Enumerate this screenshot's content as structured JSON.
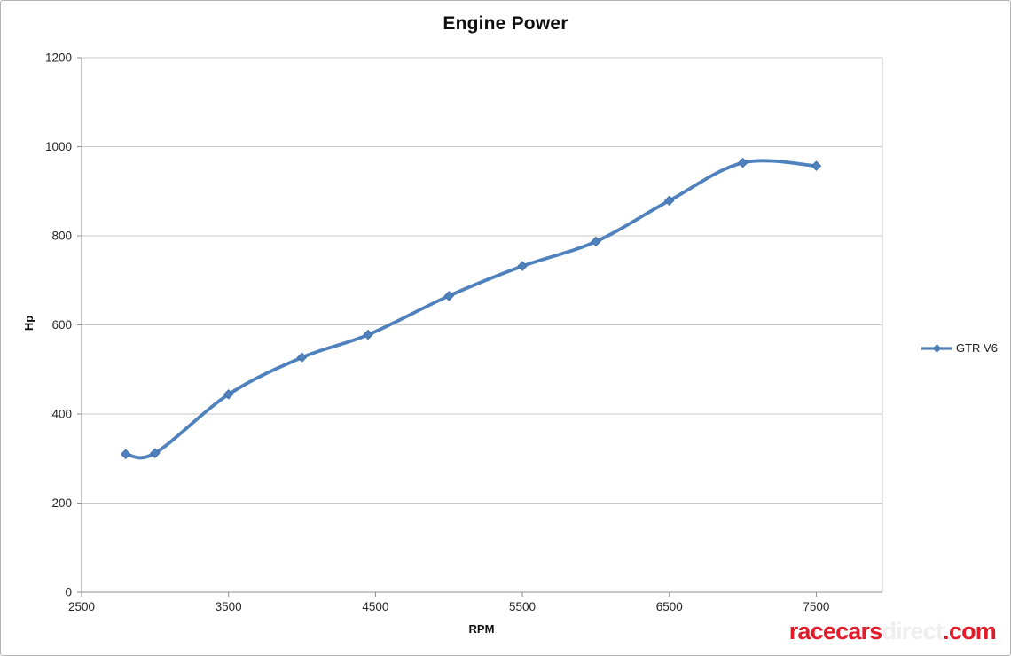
{
  "chart_data": {
    "type": "line",
    "title": "Engine Power",
    "xlabel": "RPM",
    "ylabel": "Hp",
    "xlim": [
      2500,
      7950
    ],
    "ylim": [
      0,
      1200
    ],
    "xticks": [
      2500,
      3500,
      4500,
      5500,
      6500,
      7500
    ],
    "yticks": [
      0,
      200,
      400,
      600,
      800,
      1000,
      1200
    ],
    "grid": "horizontal-only",
    "legend_position": "right",
    "line_style": "smooth",
    "marker": "diamond",
    "series": [
      {
        "name": "GTR V6",
        "color": "#4f81bd",
        "x": [
          2800,
          3000,
          3500,
          4000,
          4450,
          5000,
          5500,
          6000,
          6500,
          7000,
          7500
        ],
        "y": [
          310,
          312,
          444,
          527,
          578,
          665,
          732,
          787,
          879,
          964,
          957
        ]
      }
    ]
  },
  "watermark": {
    "text_red_1": "racecars",
    "text_faint": "direct",
    "text_red_2": ".com",
    "red_color": "#e11b2a",
    "faint_color": "#eeeeee"
  },
  "colors": {
    "series_blue": "#4f81bd",
    "marker_edge": "#3d6da8",
    "gridline": "#c9c9c9",
    "axis": "#8c8c8c",
    "tick_text": "#262626",
    "title_text": "#0d0d0d"
  }
}
